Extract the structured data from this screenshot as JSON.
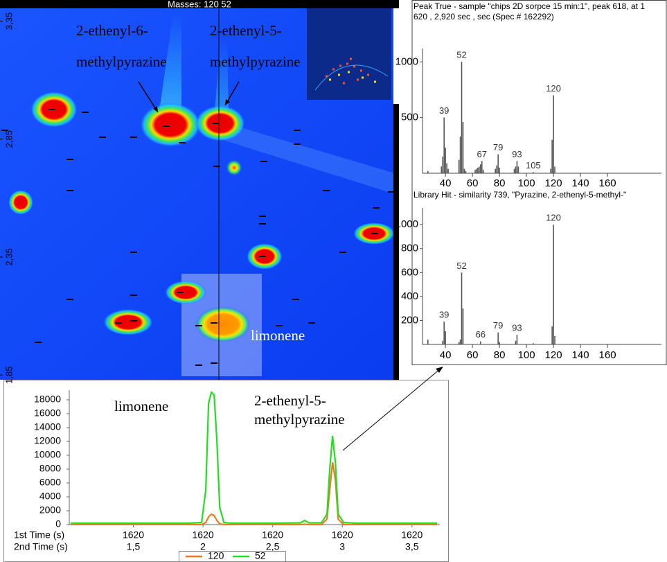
{
  "chart_data": [
    {
      "type": "heatmap",
      "title": "Masses: 120 52",
      "ylim": [
        1.83,
        3.41
      ],
      "yticks": [
        {
          "value": 3.35,
          "label": "3,35"
        },
        {
          "value": 2.85,
          "label": "2,85"
        },
        {
          "value": 2.35,
          "label": "2,35"
        },
        {
          "value": 1.85,
          "label": "1,85"
        }
      ],
      "annotations": [
        [
          "2-ethenyl-6-",
          "methylpyrazine"
        ],
        [
          "2-ethenyl-5-",
          "methylpyrazine"
        ],
        [
          "limonene"
        ]
      ]
    },
    {
      "type": "stem",
      "title": [
        "Peak True - sample \"chips 2D sorpce 15 min:1\", peak 618, at 1",
        "620 , 2,920 sec , sec (Spec # 162292)"
      ],
      "x": [
        27,
        37,
        38,
        39,
        40,
        41,
        42,
        50,
        51,
        52,
        53,
        54,
        55,
        62,
        63,
        64,
        65,
        66,
        67,
        68,
        77,
        78,
        79,
        80,
        91,
        92,
        93,
        94,
        105,
        118,
        119,
        120,
        121
      ],
      "values": [
        20,
        60,
        150,
        500,
        230,
        90,
        40,
        120,
        330,
        1000,
        460,
        40,
        20,
        30,
        40,
        50,
        60,
        80,
        110,
        30,
        40,
        70,
        170,
        50,
        40,
        60,
        110,
        60,
        10,
        40,
        300,
        700,
        60
      ],
      "x_labels": [
        null,
        null,
        null,
        "39",
        null,
        null,
        null,
        null,
        null,
        "52",
        null,
        null,
        null,
        null,
        null,
        null,
        null,
        null,
        "67",
        null,
        null,
        null,
        "79",
        null,
        null,
        null,
        "93",
        null,
        "105",
        null,
        null,
        "120",
        null
      ],
      "color": "#555555",
      "xlim": [
        23,
        200
      ],
      "ylim": [
        0,
        1120
      ],
      "xticks": [
        40,
        60,
        80,
        100,
        120,
        140,
        160
      ],
      "yticks": [
        500,
        1000
      ]
    },
    {
      "type": "stem",
      "title": [
        "Library Hit - similarity 739, \"Pyrazine, 2-ethenyl-5-methyl-\""
      ],
      "x": [
        27,
        38,
        39,
        40,
        50,
        51,
        52,
        53,
        66,
        79,
        80,
        92,
        93,
        105,
        119,
        120,
        121
      ],
      "values": [
        40,
        30,
        190,
        110,
        20,
        40,
        600,
        300,
        25,
        100,
        20,
        30,
        80,
        10,
        150,
        1000,
        70
      ],
      "x_labels": [
        null,
        null,
        "39",
        null,
        null,
        null,
        "52",
        null,
        "66",
        "79",
        null,
        null,
        "93",
        null,
        null,
        "120",
        null
      ],
      "color": "#555555",
      "xlim": [
        23,
        200
      ],
      "ylim": [
        0,
        1140
      ],
      "xticks": [
        40,
        60,
        80,
        100,
        120,
        140,
        160
      ],
      "yticks": [
        200,
        400,
        600,
        800,
        1000
      ]
    },
    {
      "type": "line",
      "x_axis_names": [
        "1st Time (s)",
        "2nd Time (s)"
      ],
      "x": [
        1.05,
        1.5,
        1.9,
        1.99,
        2.02,
        2.04,
        2.06,
        2.08,
        2.1,
        2.12,
        2.15,
        2.2,
        2.5,
        2.7,
        2.73,
        2.76,
        2.85,
        2.89,
        2.91,
        2.93,
        2.95,
        2.97,
        3.01,
        3.1,
        3.5,
        3.68
      ],
      "series": [
        {
          "name": "120",
          "color": "#f07820",
          "values": [
            0,
            0,
            0,
            0,
            300,
            1100,
            1500,
            1300,
            600,
            100,
            0,
            0,
            0,
            0,
            50,
            0,
            0,
            800,
            5000,
            9000,
            6500,
            800,
            0,
            0,
            0,
            0
          ]
        },
        {
          "name": "52",
          "color": "#22dd22",
          "values": [
            200,
            200,
            200,
            300,
            5000,
            17500,
            19100,
            18700,
            12000,
            2500,
            300,
            200,
            200,
            250,
            600,
            250,
            250,
            1500,
            8000,
            12800,
            9000,
            1500,
            300,
            200,
            200,
            200
          ]
        }
      ],
      "xlim": [
        1.04,
        3.7
      ],
      "ylim": [
        0,
        19400
      ],
      "xticks": [
        {
          "value": 1.5,
          "label": "1,5"
        },
        {
          "value": 2,
          "label": "2"
        },
        {
          "value": 2.5,
          "label": "2,5"
        },
        {
          "value": 3,
          "label": "3"
        },
        {
          "value": 3.5,
          "label": "3,5"
        }
      ],
      "xticks_1st": [
        "1620",
        "1620",
        "1620",
        "1620",
        "1620"
      ],
      "yticks": [
        0,
        2000,
        4000,
        6000,
        8000,
        10000,
        12000,
        14000,
        16000,
        18000
      ],
      "annotations": [
        [
          "limonene"
        ],
        [
          "2-ethenyl-5-",
          "methylpyrazine"
        ]
      ]
    }
  ]
}
